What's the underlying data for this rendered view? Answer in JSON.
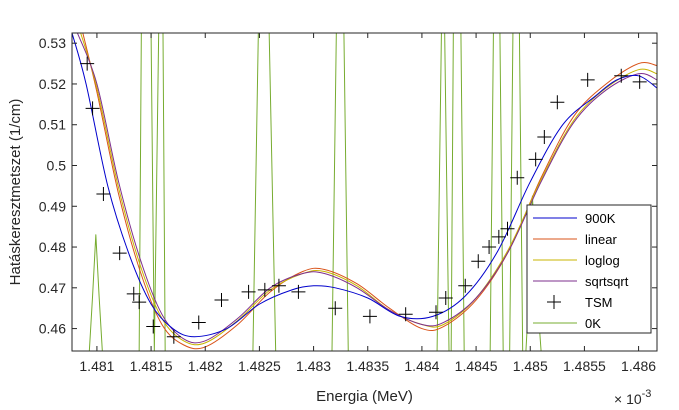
{
  "chart_data": {
    "type": "line",
    "xlabel": "Energia (MeV)",
    "ylabel": "Hatáskeresztmetszet (1/cm)",
    "x_exponent_label": "× 10",
    "x_exponent_power": "-3",
    "xlim": [
      1.48077,
      1.48617
    ],
    "ylim": [
      0.4545,
      0.5325
    ],
    "x_ticks": [
      1.481,
      1.4815,
      1.482,
      1.4825,
      1.483,
      1.4835,
      1.484,
      1.4845,
      1.485,
      1.4855,
      1.486
    ],
    "x_tick_labels": [
      "1.481",
      "1.4815",
      "1.482",
      "1.4825",
      "1.483",
      "1.4835",
      "1.484",
      "1.4845",
      "1.485",
      "1.4855",
      "1.486"
    ],
    "y_ticks": [
      0.46,
      0.47,
      0.48,
      0.49,
      0.5,
      0.51,
      0.52,
      0.53
    ],
    "y_tick_labels": [
      "0.46",
      "0.47",
      "0.48",
      "0.49",
      "0.5",
      "0.51",
      "0.52",
      "0.53"
    ],
    "legend_position": "bottom-right",
    "grid": false,
    "series": [
      {
        "name": "900K",
        "color": "#0000cc",
        "style": "line",
        "x": [
          1.48077,
          1.4809,
          1.4811,
          1.4813,
          1.4815,
          1.4817,
          1.4819,
          1.4822,
          1.4825,
          1.4828,
          1.483,
          1.4832,
          1.4835,
          1.4838,
          1.4841,
          1.4844,
          1.4847,
          1.485,
          1.4853,
          1.4856,
          1.4858,
          1.486,
          1.48617
        ],
        "y": [
          0.5325,
          0.52,
          0.495,
          0.478,
          0.466,
          0.46,
          0.458,
          0.46,
          0.466,
          0.4695,
          0.4705,
          0.47,
          0.4675,
          0.463,
          0.463,
          0.468,
          0.479,
          0.496,
          0.51,
          0.517,
          0.521,
          0.522,
          0.519
        ]
      },
      {
        "name": "linear",
        "color": "#d95319",
        "style": "line",
        "x": [
          1.48087,
          1.481,
          1.4812,
          1.4814,
          1.4816,
          1.4818,
          1.482,
          1.4823,
          1.4826,
          1.4829,
          1.4831,
          1.4834,
          1.4837,
          1.484,
          1.4842,
          1.4845,
          1.4848,
          1.4851,
          1.4854,
          1.4857,
          1.486,
          1.48617
        ],
        "y": [
          0.5325,
          0.518,
          0.493,
          0.474,
          0.461,
          0.456,
          0.4555,
          0.461,
          0.469,
          0.474,
          0.4745,
          0.471,
          0.465,
          0.46,
          0.4605,
          0.467,
          0.479,
          0.497,
          0.512,
          0.52,
          0.525,
          0.5245
        ]
      },
      {
        "name": "loglog",
        "color": "#c8b400",
        "style": "line",
        "x": [
          1.48085,
          1.481,
          1.4812,
          1.4814,
          1.4816,
          1.4818,
          1.482,
          1.4823,
          1.4826,
          1.4829,
          1.4831,
          1.4834,
          1.4837,
          1.484,
          1.4842,
          1.4845,
          1.4848,
          1.4851,
          1.4854,
          1.4857,
          1.486,
          1.48617
        ],
        "y": [
          0.5325,
          0.519,
          0.4945,
          0.4755,
          0.4625,
          0.457,
          0.4565,
          0.462,
          0.4695,
          0.4735,
          0.474,
          0.4705,
          0.4645,
          0.461,
          0.461,
          0.4675,
          0.4795,
          0.4965,
          0.511,
          0.519,
          0.5235,
          0.5225
        ]
      },
      {
        "name": "sqrtsqrt",
        "color": "#7e2f8e",
        "style": "line",
        "x": [
          1.48082,
          1.481,
          1.4812,
          1.4814,
          1.4816,
          1.4818,
          1.482,
          1.4823,
          1.4826,
          1.4829,
          1.4831,
          1.4834,
          1.4837,
          1.484,
          1.4842,
          1.4845,
          1.4848,
          1.4851,
          1.4854,
          1.4857,
          1.486,
          1.48617
        ],
        "y": [
          0.5325,
          0.52,
          0.496,
          0.477,
          0.4635,
          0.4575,
          0.457,
          0.4625,
          0.47,
          0.4735,
          0.4735,
          0.47,
          0.4645,
          0.461,
          0.4615,
          0.4675,
          0.479,
          0.496,
          0.5105,
          0.5185,
          0.5225,
          0.521
        ]
      },
      {
        "name": "TSM",
        "color": "#000000",
        "style": "marker-plus",
        "x": [
          1.48091,
          1.48096,
          1.48106,
          1.48121,
          1.48134,
          1.48139,
          1.48152,
          1.48171,
          1.48194,
          1.48215,
          1.4824,
          1.48255,
          1.48268,
          1.48286,
          1.4832,
          1.48352,
          1.48385,
          1.48413,
          1.48422,
          1.4844,
          1.48452,
          1.48462,
          1.48471,
          1.48479,
          1.48488,
          1.48505,
          1.48513,
          1.48525,
          1.48553,
          1.48584,
          1.48601
        ],
        "y": [
          0.525,
          0.514,
          0.493,
          0.4785,
          0.4685,
          0.4665,
          0.4605,
          0.458,
          0.4615,
          0.467,
          0.469,
          0.4695,
          0.4705,
          0.469,
          0.465,
          0.463,
          0.4635,
          0.464,
          0.4675,
          0.4705,
          0.4765,
          0.48,
          0.4825,
          0.4845,
          0.497,
          0.5015,
          0.507,
          0.5155,
          0.521,
          0.522,
          0.5205
        ]
      },
      {
        "name": "0K",
        "color": "#77ac30",
        "style": "line",
        "x": [
          1.48077,
          1.48093,
          1.48096,
          1.48099,
          1.48102,
          1.48105,
          1.48108,
          1.48139,
          1.48141,
          1.48143,
          1.48145,
          1.48147,
          1.4815,
          1.48153,
          1.48157,
          1.48159,
          1.48161,
          1.48163,
          1.48244,
          1.48249,
          1.48254,
          1.48259,
          1.48265,
          1.48317,
          1.48321,
          1.48325,
          1.48328,
          1.48332,
          1.48414,
          1.48418,
          1.48421,
          1.48425,
          1.48427,
          1.48429,
          1.48432,
          1.48436,
          1.48439,
          1.48463,
          1.48466,
          1.48469,
          1.48472,
          1.48475,
          1.48481,
          1.48484,
          1.48487,
          1.4849,
          1.48493,
          1.48496,
          1.48499,
          1.48502,
          1.48506,
          1.4851,
          1.48514,
          1.48518,
          1.48617
        ],
        "y": [
          0.4545,
          0.4545,
          0.468,
          0.483,
          0.468,
          0.4545,
          0.4545,
          0.4545,
          0.5325,
          0.5325,
          0.5325,
          0.5325,
          0.5325,
          0.4545,
          0.5325,
          0.5325,
          0.5325,
          0.4545,
          0.4545,
          0.5325,
          0.5325,
          0.5325,
          0.4545,
          0.4545,
          0.5325,
          0.5325,
          0.5325,
          0.4545,
          0.4545,
          0.5325,
          0.5325,
          0.4545,
          0.4545,
          0.5325,
          0.5325,
          0.5325,
          0.4545,
          0.4545,
          0.5325,
          0.5325,
          0.5325,
          0.4545,
          0.4545,
          0.5325,
          0.5325,
          0.5325,
          0.4545,
          0.4545,
          0.4695,
          0.4925,
          0.4695,
          0.4545,
          0.4545,
          0.4545,
          0.4545
        ]
      }
    ]
  }
}
